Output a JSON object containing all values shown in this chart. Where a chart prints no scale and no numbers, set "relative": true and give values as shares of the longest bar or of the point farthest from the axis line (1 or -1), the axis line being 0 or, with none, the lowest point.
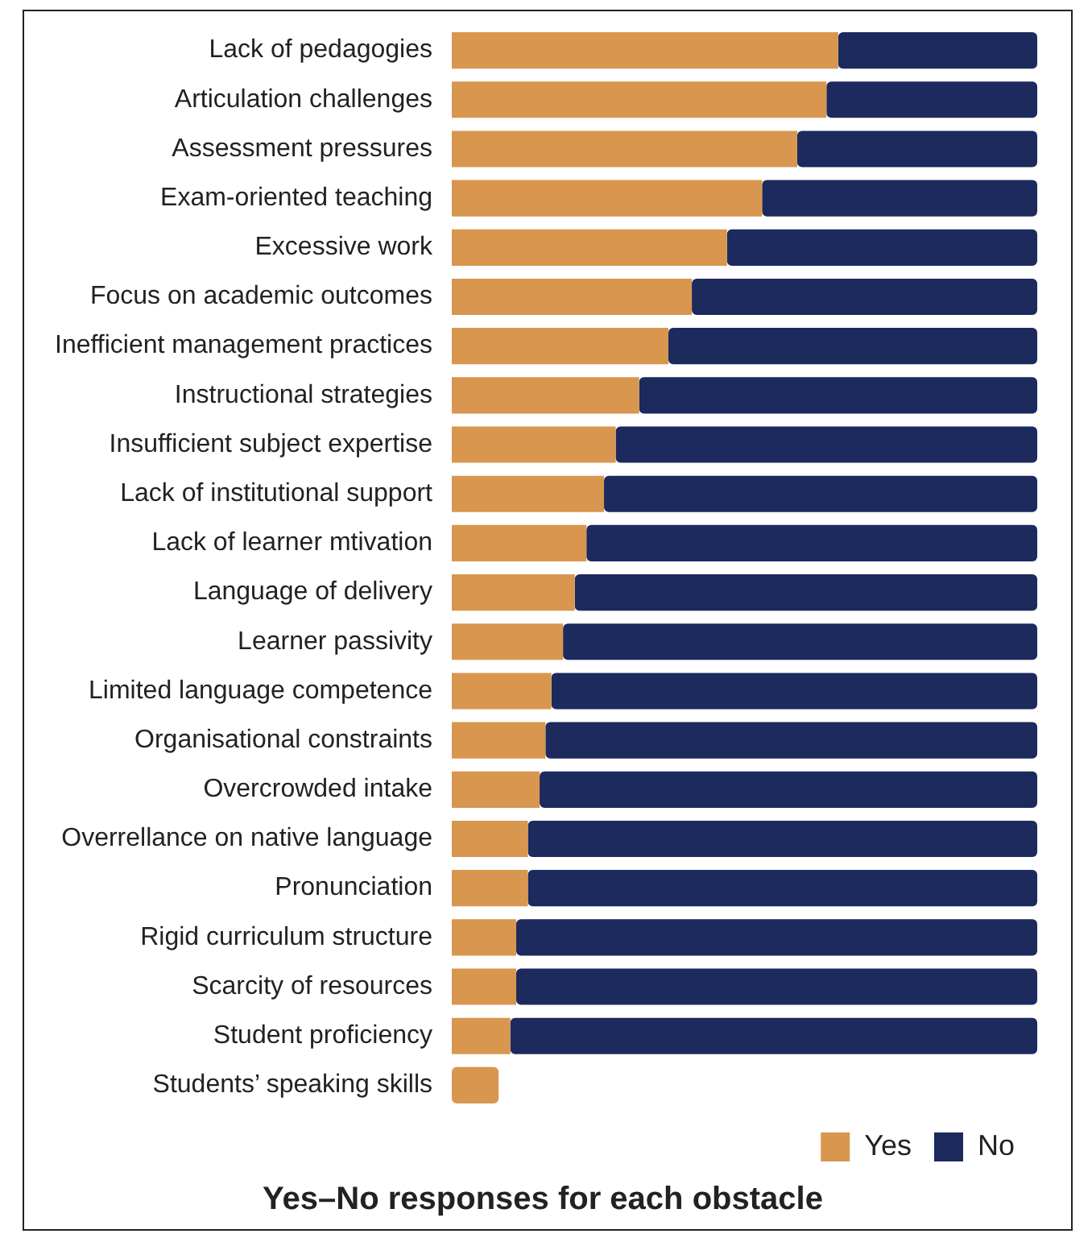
{
  "chart_data": {
    "type": "bar",
    "orientation": "horizontal",
    "stacked": true,
    "relative": true,
    "title": "Yes–No responses for each obstacle",
    "legend": "bottom right",
    "categories": [
      "Lack of pedagogies",
      "Articulation challenges",
      "Assessment pressures",
      "Exam-oriented teaching",
      "Excessive work",
      "Focus on academic outcomes",
      "Inefficient management practices",
      "Instructional strategies",
      "Insufficient subject expertise",
      "Lack of institutional support",
      "Lack of learner mtivation",
      "Language of delivery",
      "Learner passivity",
      "Limited language competence",
      "Organisational constraints",
      "Overcrowded intake",
      "Overrellance on native language",
      "Pronunciation",
      "Rigid curriculum structure",
      "Scarcity of resources",
      "Student proficiency",
      "Students’ speaking skills"
    ],
    "series": [
      {
        "name": "Yes",
        "color": "#d9964f",
        "values": [
          0.66,
          0.64,
          0.59,
          0.53,
          0.47,
          0.41,
          0.37,
          0.32,
          0.28,
          0.26,
          0.23,
          0.21,
          0.19,
          0.17,
          0.16,
          0.15,
          0.13,
          0.13,
          0.11,
          0.11,
          0.1,
          0.08
        ]
      },
      {
        "name": "No",
        "color": "#1c2a5e",
        "values": [
          0.34,
          0.36,
          0.41,
          0.47,
          0.53,
          0.59,
          0.63,
          0.68,
          0.72,
          0.74,
          0.77,
          0.79,
          0.81,
          0.83,
          0.84,
          0.85,
          0.87,
          0.87,
          0.89,
          0.89,
          0.9,
          null
        ]
      }
    ]
  }
}
